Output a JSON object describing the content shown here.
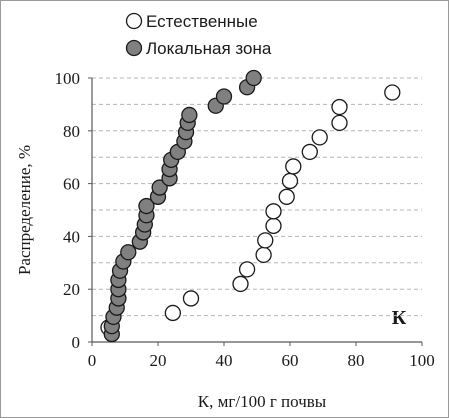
{
  "chart_data": {
    "type": "scatter",
    "xlabel": "К,  мг/100 г почвы",
    "ylabel": "Распределение, %",
    "xlim": [
      0,
      100
    ],
    "ylim": [
      0,
      100
    ],
    "x_ticks": [
      "0",
      "20",
      "40",
      "60",
      "80",
      "100"
    ],
    "y_ticks": [
      "0",
      "20",
      "40",
      "60",
      "80",
      "100"
    ],
    "grid": "horizontal dashed",
    "legend_position": "top",
    "annotation": "К",
    "series": [
      {
        "name": "Естественные",
        "marker": "open-circle",
        "color": "#ffffff",
        "points": [
          [
            5,
            5.5
          ],
          [
            24.5,
            11
          ],
          [
            30,
            16.5
          ],
          [
            45,
            22
          ],
          [
            47,
            27.5
          ],
          [
            52,
            33
          ],
          [
            52.5,
            38.5
          ],
          [
            55,
            44
          ],
          [
            55,
            49.5
          ],
          [
            59,
            55
          ],
          [
            60,
            61
          ],
          [
            61,
            66.5
          ],
          [
            66,
            72
          ],
          [
            69,
            77.5
          ],
          [
            75,
            83
          ],
          [
            75,
            89
          ],
          [
            91,
            94.5
          ]
        ]
      },
      {
        "name": "Локальная зона",
        "marker": "filled-circle",
        "color": "#808080",
        "points": [
          [
            6,
            3
          ],
          [
            6,
            6
          ],
          [
            6.5,
            9.5
          ],
          [
            7.5,
            13
          ],
          [
            8,
            16.5
          ],
          [
            8,
            20
          ],
          [
            8,
            23.5
          ],
          [
            8.5,
            27
          ],
          [
            9.5,
            30.5
          ],
          [
            11,
            34
          ],
          [
            14.5,
            38
          ],
          [
            15.5,
            41.5
          ],
          [
            16,
            44.5
          ],
          [
            16.5,
            48
          ],
          [
            16.5,
            51.5
          ],
          [
            20,
            55
          ],
          [
            20.5,
            58.5
          ],
          [
            23.5,
            62
          ],
          [
            23.5,
            65.5
          ],
          [
            24,
            69
          ],
          [
            26,
            72
          ],
          [
            28,
            76
          ],
          [
            28.5,
            79.5
          ],
          [
            29,
            83
          ],
          [
            29.5,
            86
          ],
          [
            37.5,
            89.5
          ],
          [
            40,
            93
          ],
          [
            47,
            96.5
          ],
          [
            49,
            100
          ]
        ]
      }
    ]
  }
}
